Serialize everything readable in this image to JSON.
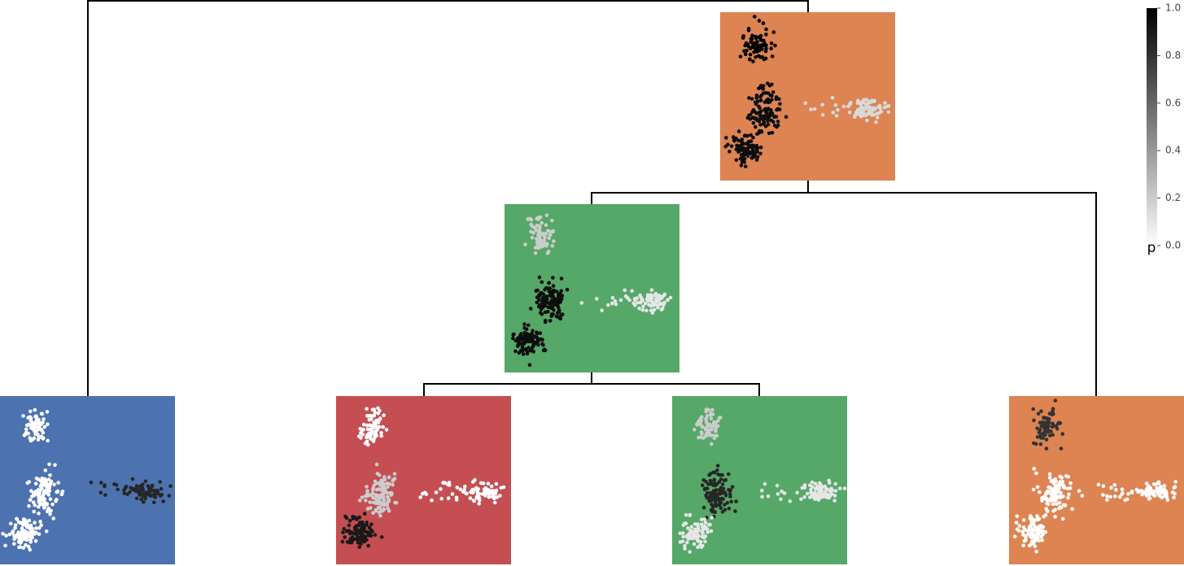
{
  "colorbar": {
    "label": "p",
    "ylim": [
      0,
      1
    ],
    "ticks": [
      {
        "value": 0,
        "label": "0.0"
      },
      0.2,
      0.4,
      0.6,
      0.8,
      {
        "value": 1,
        "label": "1.0"
      }
    ]
  },
  "nodes": [
    {
      "color": "#dd8452",
      "cluster_p": [
        1,
        0.95,
        0.95,
        0.15
      ]
    },
    {
      "color": "#55a868",
      "cluster_p": [
        0.2,
        0.95,
        0.95,
        0.1
      ]
    },
    {
      "color": "#4c72b0",
      "cluster_p": [
        0,
        0,
        0,
        0.85
      ]
    },
    {
      "color": "#c44e52",
      "cluster_p": [
        0,
        0.2,
        0.9,
        0
      ]
    },
    {
      "color": "#55a868",
      "cluster_p": [
        0.2,
        0.85,
        0.1,
        0.1
      ]
    },
    {
      "color": "#dd8452",
      "cluster_p": [
        0.8,
        0,
        0,
        0
      ]
    }
  ]
}
